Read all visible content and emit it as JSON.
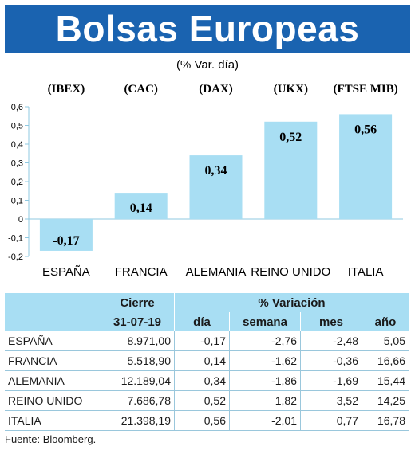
{
  "title": "Bolsas Europeas",
  "chart_data": {
    "type": "bar",
    "subtitle": "(% Var. día)",
    "indices": [
      "(IBEX)",
      "(CAC)",
      "(DAX)",
      "(UKX)",
      "(FTSE MIB)"
    ],
    "categories": [
      "ESPAÑA",
      "FRANCIA",
      "ALEMANIA",
      "REINO UNIDO",
      "ITALIA"
    ],
    "values": [
      -0.17,
      0.14,
      0.34,
      0.52,
      0.56
    ],
    "value_labels": [
      "-0,17",
      "0,14",
      "0,34",
      "0,52",
      "0,56"
    ],
    "ylim": [
      -0.2,
      0.6
    ],
    "yticks": [
      -0.2,
      -0.1,
      0,
      0.1,
      0.2,
      0.3,
      0.4,
      0.5,
      0.6
    ],
    "ytick_labels": [
      "-0,2",
      "-0,1",
      "0",
      "0,1",
      "0,2",
      "0,3",
      "0,4",
      "0,5",
      "0,6"
    ],
    "bar_color": "#a8def3",
    "axis_color": "#8fc8e0"
  },
  "table": {
    "header_group": {
      "cierre": "Cierre",
      "variacion": "% Variación"
    },
    "columns": [
      "31-07-19",
      "día",
      "semana",
      "mes",
      "año"
    ],
    "rows": [
      {
        "pais": "ESPAÑA",
        "cierre": "8.971,00",
        "dia": "-0,17",
        "semana": "-2,76",
        "mes": "-2,48",
        "ano": "5,05"
      },
      {
        "pais": "FRANCIA",
        "cierre": "5.518,90",
        "dia": "0,14",
        "semana": "-1,62",
        "mes": "-0,36",
        "ano": "16,66"
      },
      {
        "pais": "ALEMANIA",
        "cierre": "12.189,04",
        "dia": "0,34",
        "semana": "-1,86",
        "mes": "-1,69",
        "ano": "15,44"
      },
      {
        "pais": "REINO UNIDO",
        "cierre": "7.686,78",
        "dia": "0,52",
        "semana": "1,82",
        "mes": "3,52",
        "ano": "14,25"
      },
      {
        "pais": "ITALIA",
        "cierre": "21.398,19",
        "dia": "0,56",
        "semana": "-2,01",
        "mes": "0,77",
        "ano": "16,78"
      }
    ]
  },
  "source": "Fuente: Bloomberg."
}
